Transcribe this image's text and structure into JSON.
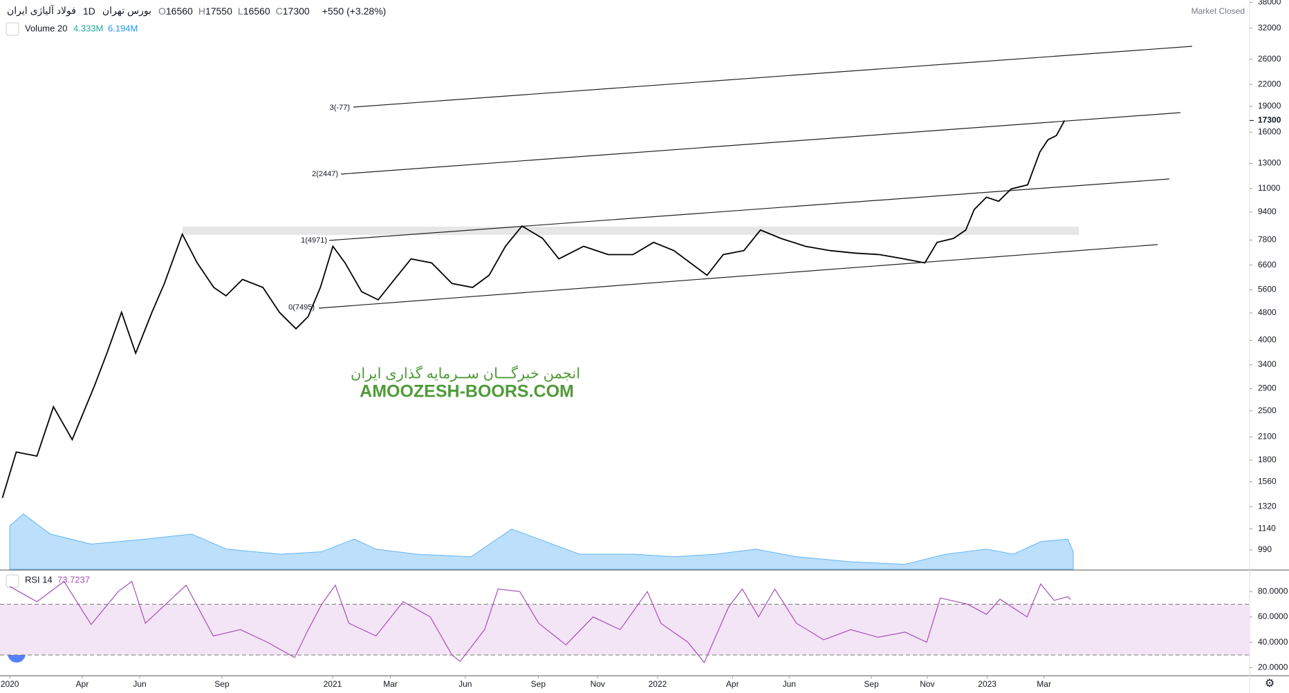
{
  "header": {
    "symbol": "فولاد آلیاژی ایران",
    "interval": "1D",
    "exchange": "بورس تهران",
    "ohlc": [
      {
        "key": "O",
        "value": 16560
      },
      {
        "key": "H",
        "value": 17550
      },
      {
        "key": "L",
        "value": 16560
      },
      {
        "key": "C",
        "value": 17300
      }
    ],
    "change": "+550 (+3.28%)",
    "status": "Market Closed"
  },
  "watermark": {
    "line1": "انجمن خبرگـــان ســرمایه گذاری ایران",
    "line2": "AMOOZESH-BOORS.COM"
  },
  "chart_data": [
    {
      "type": "line",
      "log_y": true,
      "color": "#000000",
      "last_price": 17300,
      "xlim": [
        -0.36,
        45.7
      ],
      "ylim": [
        870,
        38600
      ],
      "yticks": [
        38000,
        32000,
        26000,
        22000,
        19000,
        16000,
        13000,
        11000,
        9400,
        7800,
        6600,
        5600,
        4800,
        4000,
        3400,
        2900,
        2500,
        2100,
        1800,
        1560,
        1320,
        1140,
        990
      ],
      "annotations": [
        "0(7495)",
        "1(4971)",
        "2(2447)",
        "3(-77)"
      ],
      "x": [
        -0.27,
        0.24,
        1.0,
        1.61,
        2.3,
        3.12,
        3.58,
        4.12,
        4.64,
        5.24,
        5.7,
        6.36,
        6.91,
        7.52,
        7.97,
        8.58,
        9.33,
        9.94,
        10.55,
        11.0,
        11.45,
        11.91,
        12.36,
        12.97,
        13.58,
        14.18,
        14.79,
        15.55,
        16.3,
        17.06,
        17.67,
        18.27,
        18.88,
        19.64,
        20.24,
        21.15,
        22.06,
        22.97,
        23.73,
        24.48,
        25.09,
        25.7,
        26.3,
        27.06,
        27.67,
        28.42,
        29.33,
        30.24,
        31.15,
        32.06,
        32.97,
        33.73,
        34.18,
        34.79,
        35.24,
        35.55,
        36.0,
        36.45,
        36.91,
        37.52,
        37.97,
        38.27,
        38.58,
        38.88
      ],
      "series": [
        {
          "name": "price",
          "color": "#000000",
          "values": [
            1400,
            1900,
            1850,
            2570,
            2065,
            2950,
            3670,
            4820,
            3670,
            4820,
            5840,
            8110,
            6700,
            5690,
            5380,
            6000,
            5690,
            4820,
            4320,
            4690,
            5690,
            7480,
            6700,
            5530,
            5240,
            6000,
            6880,
            6700,
            5840,
            5690,
            6170,
            7480,
            8560,
            7890,
            6880,
            7480,
            7080,
            7080,
            7680,
            7270,
            6700,
            6170,
            7080,
            7270,
            8340,
            7890,
            7480,
            7270,
            7150,
            7080,
            6880,
            6700,
            7680,
            7890,
            8340,
            9560,
            10380,
            10100,
            10960,
            11270,
            14020,
            15220,
            15650,
            17300
          ]
        }
      ]
    },
    {
      "type": "area",
      "xlim": [
        -0.36,
        45.7
      ],
      "ylim": [
        0,
        113
      ],
      "legend_values": [
        "4.333M",
        "6.194M"
      ],
      "x": [
        0,
        0.5,
        1.5,
        3,
        5,
        6.7,
        8,
        10,
        11.5,
        12.7,
        13.5,
        15,
        17,
        18.5,
        19.5,
        21,
        23,
        24.5,
        26,
        27.5,
        29,
        31,
        33,
        34.5,
        36,
        37,
        38,
        39,
        39.2
      ],
      "series": [
        {
          "name": "Volume 20",
          "color": "#90caf9",
          "values": [
            8.6,
            11,
            7,
            5,
            6,
            7,
            4,
            3,
            3.5,
            6,
            4,
            3,
            2.5,
            8,
            6,
            3,
            3,
            2.5,
            3,
            4,
            2.5,
            1.5,
            1,
            3,
            4,
            3,
            5.5,
            6,
            3.5
          ]
        }
      ]
    },
    {
      "type": "line",
      "xlim": [
        -0.36,
        45.7
      ],
      "ylim": [
        14.2,
        94.8
      ],
      "bands": [
        30,
        70
      ],
      "value_label": "73.7237",
      "yticks": [
        {
          "value": 20,
          "label": "20.0000"
        },
        {
          "value": 40,
          "label": "40.0000"
        },
        {
          "value": 60,
          "label": "60.0000"
        },
        {
          "value": 80,
          "label": "80.0000"
        }
      ],
      "xticks": [
        {
          "value": 0,
          "label": "2020"
        },
        {
          "value": 2.67,
          "label": "Apr"
        },
        {
          "value": 4.79,
          "label": "Jun"
        },
        {
          "value": 7.82,
          "label": "Sep"
        },
        {
          "value": 11.9,
          "label": "2021"
        },
        {
          "value": 14.03,
          "label": "Mar"
        },
        {
          "value": 16.79,
          "label": "Jun"
        },
        {
          "value": 19.48,
          "label": "Sep"
        },
        {
          "value": 21.67,
          "label": "Nov"
        },
        {
          "value": 23.88,
          "label": "2022"
        },
        {
          "value": 26.64,
          "label": "Apr"
        },
        {
          "value": 28.73,
          "label": "Jun"
        },
        {
          "value": 31.76,
          "label": "Sep"
        },
        {
          "value": 33.82,
          "label": "Nov"
        },
        {
          "value": 36.03,
          "label": "2023"
        },
        {
          "value": 38.12,
          "label": "Mar"
        }
      ],
      "x": [
        0,
        1,
        2,
        3,
        4,
        4.5,
        5,
        6.5,
        7.5,
        8.5,
        9.5,
        10.5,
        11,
        11.5,
        12,
        12.5,
        13.5,
        14.5,
        15.5,
        16.3,
        16.6,
        17.5,
        18,
        18.8,
        19.5,
        20.5,
        21.5,
        22.5,
        23.5,
        24,
        25,
        25.6,
        26.5,
        27,
        27.6,
        28.2,
        29,
        30,
        31,
        32,
        33,
        33.8,
        34.3,
        35.3,
        36,
        36.5,
        37.5,
        38,
        38.5,
        39,
        39.1
      ],
      "series": [
        {
          "name": "RSI 14",
          "color": "#a64fb8",
          "values": [
            84,
            72,
            88,
            54,
            80,
            88,
            55,
            85,
            45,
            50,
            40,
            28,
            50,
            70,
            85,
            55,
            45,
            72,
            60,
            30,
            25,
            50,
            82,
            80,
            55,
            38,
            60,
            50,
            80,
            55,
            40,
            24,
            68,
            82,
            60,
            82,
            55,
            42,
            50,
            44,
            48,
            40,
            75,
            70,
            62,
            74,
            60,
            86,
            73,
            76,
            73.7237
          ]
        }
      ]
    }
  ]
}
